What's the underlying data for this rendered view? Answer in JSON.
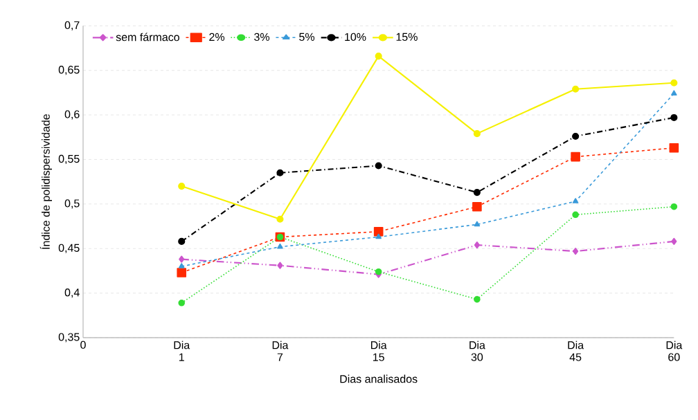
{
  "chart_data": {
    "type": "line",
    "xlabel": "Dias analisados",
    "ylabel": "Índice de polidispersividade",
    "categories": [
      "0",
      "Dia 1",
      "Dia 7",
      "Dia 15",
      "Dia 30",
      "Dia 45",
      "Dia 60"
    ],
    "ylim": [
      0.35,
      0.7
    ],
    "yticks": [
      {
        "value": 0.35,
        "label": "0,35"
      },
      {
        "value": 0.4,
        "label": "0,4"
      },
      {
        "value": 0.45,
        "label": "0,45"
      },
      {
        "value": 0.5,
        "label": "0,5"
      },
      {
        "value": 0.55,
        "label": "0,55"
      },
      {
        "value": 0.6,
        "label": "0,6"
      },
      {
        "value": 0.65,
        "label": "0,65"
      },
      {
        "value": 0.7,
        "label": "0,7"
      }
    ],
    "grid": "y",
    "legend": "top left",
    "series": [
      {
        "name": "sem fármaco",
        "color": "#cc55cc",
        "marker": "diamond",
        "line_style": "dashdotdot",
        "values": [
          null,
          0.438,
          0.431,
          0.421,
          0.454,
          0.447,
          0.458
        ]
      },
      {
        "name": "2%",
        "color": "#ff2a00",
        "marker": "square",
        "line_style": "dashed",
        "values": [
          null,
          0.423,
          0.463,
          0.469,
          0.497,
          0.553,
          0.563
        ]
      },
      {
        "name": "3%",
        "color": "#33dd33",
        "marker": "circle",
        "line_style": "dotted",
        "values": [
          null,
          0.389,
          0.463,
          0.424,
          0.393,
          0.488,
          0.497
        ]
      },
      {
        "name": "5%",
        "color": "#3a9ad9",
        "marker": "triangle",
        "line_style": "dashed",
        "values": [
          null,
          0.43,
          0.452,
          0.463,
          0.477,
          0.503,
          0.624
        ]
      },
      {
        "name": "10%",
        "color": "#000000",
        "marker": "circle",
        "line_style": "dashdot",
        "values": [
          null,
          0.458,
          0.535,
          0.543,
          0.513,
          0.576,
          0.597
        ]
      },
      {
        "name": "15%",
        "color": "#f5f000",
        "marker": "circle",
        "line_style": "solid",
        "values": [
          null,
          0.52,
          0.483,
          0.666,
          0.579,
          0.629,
          0.636
        ]
      }
    ]
  }
}
